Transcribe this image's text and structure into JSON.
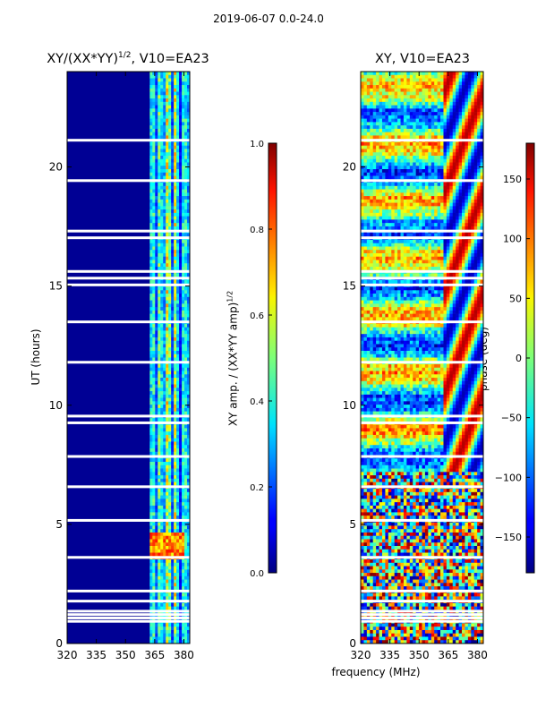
{
  "suptitle": "2019-06-07 0.0-24.0",
  "shared_xlabel": "frequency (MHz)",
  "chart_data": [
    {
      "type": "heatmap",
      "title_main": "XY/(XX*YY)",
      "title_exp": "1/2",
      "title_suffix": ", V10=EA23",
      "xlabel": "frequency (MHz)",
      "ylabel": "UT (hours)",
      "xlim": [
        320,
        383
      ],
      "ylim": [
        0,
        24
      ],
      "xticks": [
        320,
        335,
        350,
        365,
        380
      ],
      "yticks": [
        0,
        5,
        10,
        15,
        20
      ],
      "colorbar": {
        "label": "XY amp. / (XX*YY amp)",
        "label_exp": "1/2",
        "range": [
          0.0,
          1.0
        ],
        "ticks": [
          "0.0",
          "0.2",
          "0.4",
          "0.6",
          "0.8",
          "1.0"
        ],
        "tick_values": [
          0.0,
          0.2,
          0.4,
          0.6,
          0.8,
          1.0
        ]
      },
      "colormap": "jet",
      "flagged_channels_below_MHz": 362,
      "typical_value_flagged_region": 0.02,
      "typical_value_active_band": 0.4,
      "bright_patch": {
        "ut_range": [
          3.5,
          4.6
        ],
        "freq_range": [
          362,
          380
        ],
        "value": 0.75
      }
    },
    {
      "type": "heatmap",
      "title": "XY, V10=EA23",
      "xlabel": "frequency (MHz)",
      "ylabel": "",
      "xlim": [
        320,
        383
      ],
      "ylim": [
        0,
        24
      ],
      "xticks": [
        320,
        335,
        350,
        365,
        380
      ],
      "yticks": [
        0,
        5,
        10,
        15,
        20
      ],
      "colorbar": {
        "label": "phase (deg)",
        "range": [
          -180,
          180
        ],
        "ticks": [
          "150",
          "100",
          "50",
          "0",
          "−50",
          "−100",
          "−150"
        ],
        "tick_values": [
          150,
          100,
          50,
          0,
          -50,
          -100,
          -150
        ]
      },
      "colormap": "jet"
    }
  ]
}
